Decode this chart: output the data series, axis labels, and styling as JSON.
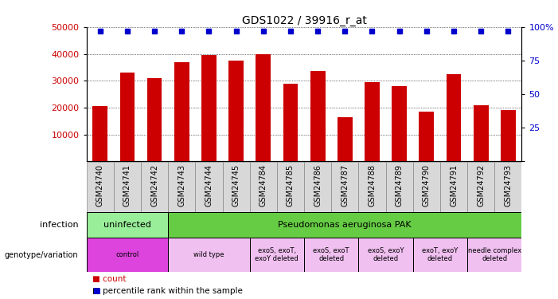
{
  "title": "GDS1022 / 39916_r_at",
  "samples": [
    "GSM24740",
    "GSM24741",
    "GSM24742",
    "GSM24743",
    "GSM24744",
    "GSM24745",
    "GSM24784",
    "GSM24785",
    "GSM24786",
    "GSM24787",
    "GSM24788",
    "GSM24789",
    "GSM24790",
    "GSM24791",
    "GSM24792",
    "GSM24793"
  ],
  "counts": [
    20500,
    33000,
    31000,
    37000,
    39500,
    37500,
    40000,
    29000,
    33500,
    16500,
    29500,
    28000,
    18500,
    32500,
    21000,
    19000
  ],
  "bar_color": "#cc0000",
  "dot_color": "#0000cc",
  "dot_value": 97,
  "ylim_left": [
    0,
    50000
  ],
  "ylim_right": [
    0,
    100
  ],
  "yticks_left": [
    10000,
    20000,
    30000,
    40000,
    50000
  ],
  "yticks_right": [
    0,
    25,
    50,
    75,
    100
  ],
  "infection_row": {
    "label": "infection",
    "groups": [
      {
        "text": "uninfected",
        "start": 0,
        "end": 3,
        "color": "#99ee99"
      },
      {
        "text": "Pseudomonas aeruginosa PAK",
        "start": 3,
        "end": 16,
        "color": "#66cc44"
      }
    ]
  },
  "genotype_row": {
    "label": "genotype/variation",
    "groups": [
      {
        "text": "control",
        "start": 0,
        "end": 3,
        "color": "#dd44dd"
      },
      {
        "text": "wild type",
        "start": 3,
        "end": 6,
        "color": "#f0c0f0"
      },
      {
        "text": "exoS, exoT,\nexoY deleted",
        "start": 6,
        "end": 8,
        "color": "#f0c0f0"
      },
      {
        "text": "exoS, exoT\ndeleted",
        "start": 8,
        "end": 10,
        "color": "#f0c0f0"
      },
      {
        "text": "exoS, exoY\ndeleted",
        "start": 10,
        "end": 12,
        "color": "#f0c0f0"
      },
      {
        "text": "exoT, exoY\ndeleted",
        "start": 12,
        "end": 14,
        "color": "#f0c0f0"
      },
      {
        "text": "needle complex\ndeleted",
        "start": 14,
        "end": 16,
        "color": "#f0c0f0"
      }
    ]
  },
  "xlabel_bg_color": "#d8d8d8",
  "legend_count_color": "#cc0000",
  "legend_dot_color": "#0000cc"
}
